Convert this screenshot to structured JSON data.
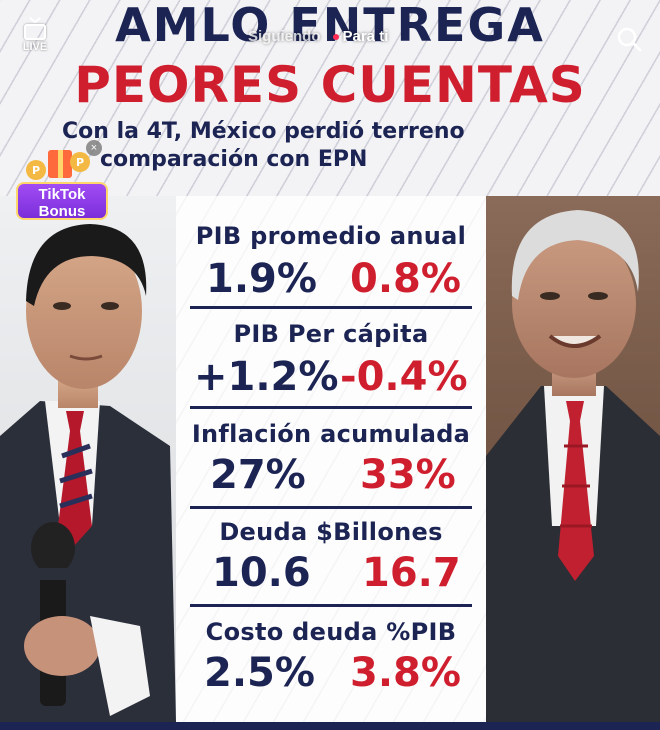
{
  "overlay": {
    "live_label": "LIVE",
    "tab_following": "Siguiendo",
    "tab_for_you": "Para ti",
    "search_icon": "search-icon"
  },
  "headline": {
    "line1": "AMLO ENTREGA",
    "line2": "PEORES CUENTAS"
  },
  "subtitle": {
    "line1": "Con la 4T, México perdió terreno",
    "line2": "comparación con EPN"
  },
  "bonus": {
    "label_line1": "TikTok",
    "label_line2": "Bonus"
  },
  "stats": [
    {
      "label": "PIB promedio anual",
      "epn": "1.9%",
      "amlo": "0.8%"
    },
    {
      "label": "PIB Per cápita",
      "epn": "+1.2%",
      "amlo": "-0.4%"
    },
    {
      "label": "Inflación acumulada",
      "epn": "27%",
      "amlo": "33%"
    },
    {
      "label": "Deuda $Billones",
      "epn": "10.6",
      "amlo": "16.7"
    },
    {
      "label": "Costo deuda %PIB",
      "epn": "2.5%",
      "amlo": "3.8%"
    }
  ],
  "colors": {
    "navy": "#1c2454",
    "red": "#cf1f2e",
    "tiktok_pink": "#fe2c55"
  }
}
